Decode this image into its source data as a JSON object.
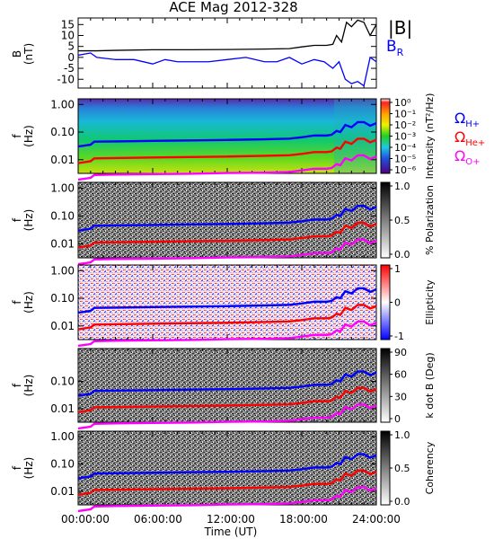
{
  "title": "ACE Mag 2012-328",
  "time_axis": {
    "label": "Time (UT)",
    "tick_labels": [
      "00:00:00",
      "06:00:00",
      "12:00:00",
      "18:00:00",
      "24:00:00"
    ],
    "range_hours": [
      0,
      24
    ]
  },
  "colors": {
    "B_total": "#000000",
    "B_R": "#0000ff",
    "omega_H": "#0000ff",
    "omega_He": "#ff0000",
    "omega_O": "#ff00ff"
  },
  "chart_data": [
    {
      "type": "line",
      "panel": "magnetic_field",
      "ylabel": "B (nT)",
      "ylim": [
        -14,
        18
      ],
      "y_tick_labels": [
        "15",
        "10",
        "5",
        "0",
        "-5",
        "-10"
      ],
      "legend": [
        "|B|",
        "B_R"
      ],
      "series": [
        {
          "name": "|B|",
          "x": [
            0,
            1,
            1.5,
            3,
            6,
            9,
            12,
            15,
            17,
            18,
            19,
            20,
            20.5,
            20.8,
            21.2,
            21.6,
            22,
            22.5,
            23,
            23.5,
            24
          ],
          "values": [
            3,
            3,
            3,
            3.2,
            3.5,
            3.5,
            3.6,
            3.8,
            4,
            4.8,
            5.5,
            5.5,
            6,
            10,
            7,
            16,
            14,
            17,
            16,
            10,
            15
          ]
        },
        {
          "name": "B_R",
          "x": [
            0,
            1,
            1.5,
            3,
            4.5,
            6,
            7,
            8,
            9,
            10.5,
            12,
            13.5,
            15,
            16,
            17,
            18,
            19,
            19.8,
            20.5,
            21,
            21.5,
            22,
            22.5,
            23,
            23.5,
            24
          ],
          "values": [
            1,
            2,
            0,
            -1,
            -1,
            -3,
            -1,
            -2,
            -2,
            -2,
            -1,
            0,
            -2,
            -2,
            0,
            -3,
            -1,
            -2,
            -5,
            -2,
            -10,
            -12,
            -11,
            -13,
            0,
            -2
          ]
        }
      ]
    },
    {
      "type": "heatmap",
      "panel": "power_spectrum",
      "ylabel": "f (Hz)",
      "yscale": "log",
      "y_tick_labels": [
        "1.00",
        "0.10",
        "0.01"
      ],
      "colorbar_label": "Intensity (nT²/Hz)",
      "colorbar_tick_labels": [
        "10⁰",
        "10⁻¹",
        "10⁻²",
        "10⁻³",
        "10⁻⁴",
        "10⁻⁵",
        "10⁻⁶"
      ],
      "legend": [
        "Ω_H+",
        "Ω_He+",
        "Ω_O+"
      ]
    },
    {
      "type": "heatmap",
      "panel": "polarization",
      "ylabel": "f (Hz)",
      "yscale": "log",
      "y_tick_labels": [
        "1.00",
        "0.10",
        "0.01"
      ],
      "colorbar_label": "% Polarization",
      "colorbar_tick_labels": [
        "1.0",
        "0.5",
        "0.0"
      ]
    },
    {
      "type": "heatmap",
      "panel": "ellipticity",
      "ylabel": "f (Hz)",
      "yscale": "log",
      "y_tick_labels": [
        "1.00",
        "0.10",
        "0.01"
      ],
      "colorbar_label": "Ellipticity",
      "colorbar_tick_labels": [
        "1",
        "0",
        "-1"
      ]
    },
    {
      "type": "heatmap",
      "panel": "k_dot_b",
      "ylabel": "f (Hz)",
      "yscale": "log",
      "y_tick_labels": [
        "0.10",
        "0.01"
      ],
      "colorbar_label": "k dot B (Deg)",
      "colorbar_tick_labels": [
        "90",
        "60",
        "30",
        "0"
      ]
    },
    {
      "type": "heatmap",
      "panel": "coherency",
      "ylabel": "f (Hz)",
      "yscale": "log",
      "y_tick_labels": [
        "1.00",
        "0.10",
        "0.01"
      ],
      "colorbar_label": "Coherency",
      "colorbar_tick_labels": [
        "1.0",
        "0.5",
        "0.0"
      ]
    }
  ],
  "gyrofrequencies_hz": {
    "x": [
      0,
      1,
      1.3,
      3,
      6,
      9,
      12,
      15,
      17,
      18,
      19,
      20,
      20.4,
      20.8,
      21.1,
      21.5,
      22,
      22.5,
      23,
      23.5,
      24
    ],
    "omega_H": [
      0.03,
      0.035,
      0.045,
      0.046,
      0.048,
      0.05,
      0.052,
      0.055,
      0.058,
      0.065,
      0.075,
      0.075,
      0.08,
      0.11,
      0.1,
      0.18,
      0.15,
      0.23,
      0.23,
      0.17,
      0.21
    ],
    "omega_He": [
      0.0075,
      0.0088,
      0.0112,
      0.0115,
      0.012,
      0.0125,
      0.013,
      0.0138,
      0.0145,
      0.0163,
      0.0188,
      0.0188,
      0.02,
      0.0275,
      0.025,
      0.045,
      0.0375,
      0.0575,
      0.0575,
      0.0425,
      0.0525
    ],
    "omega_O": [
      0.0019,
      0.0022,
      0.0028,
      0.0029,
      0.003,
      0.0031,
      0.0033,
      0.0034,
      0.0036,
      0.0041,
      0.0047,
      0.0047,
      0.005,
      0.0069,
      0.0063,
      0.0113,
      0.0094,
      0.0144,
      0.0144,
      0.0106,
      0.0131
    ]
  }
}
